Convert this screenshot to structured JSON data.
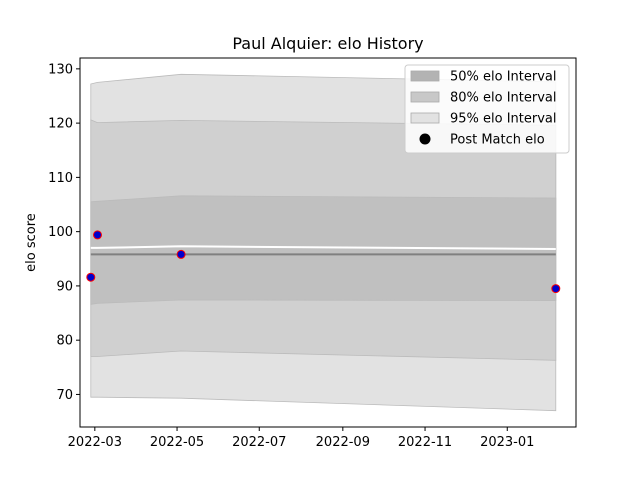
{
  "chart_data": {
    "type": "area",
    "title": "Paul Alquier: elo History",
    "xlabel": "",
    "ylabel": "elo score",
    "xlim": [
      "2022-02-18",
      "2023-02-21"
    ],
    "ylim": [
      64,
      132
    ],
    "x_ticks": [
      "2022-03",
      "2022-05",
      "2022-07",
      "2022-09",
      "2022-11",
      "2023-01"
    ],
    "y_ticks": [
      70,
      80,
      90,
      100,
      110,
      120,
      130
    ],
    "grid": false,
    "legend_position": "top-right",
    "legend": [
      {
        "label": "50% elo Interval",
        "kind": "band",
        "color": "#b3b3b3"
      },
      {
        "label": "80% elo Interval",
        "kind": "band",
        "color": "#c8c8c8"
      },
      {
        "label": "95% elo Interval",
        "kind": "band",
        "color": "#e2e2e2"
      },
      {
        "label": "Post Match elo",
        "kind": "marker",
        "color": "#000000"
      }
    ],
    "dates": [
      "2022-02-26",
      "2022-03-03",
      "2022-05-04",
      "2023-02-06"
    ],
    "bands": [
      {
        "name": "95% elo Interval",
        "color": "#e2e2e2",
        "upper": [
          127.2,
          127.5,
          129.0,
          127.6
        ],
        "lower": [
          69.5,
          69.5,
          69.3,
          67.0
        ]
      },
      {
        "name": "80% elo Interval",
        "color": "#d0d0d0",
        "upper": [
          120.6,
          120.1,
          120.5,
          119.6
        ],
        "lower": [
          77.0,
          77.0,
          78.0,
          76.3
        ]
      },
      {
        "name": "50% elo Interval",
        "color": "#c0c0c0",
        "upper": [
          105.5,
          105.6,
          106.6,
          106.2
        ],
        "lower": [
          86.6,
          86.8,
          87.4,
          87.3
        ]
      }
    ],
    "series": [
      {
        "kind": "line",
        "color": "#ffffff",
        "values": [
          97.0,
          97.0,
          97.3,
          96.8
        ]
      },
      {
        "kind": "line",
        "color": "#808080",
        "values": [
          95.8,
          95.8,
          95.8,
          95.8
        ]
      }
    ],
    "points": [
      {
        "date": "2022-02-26",
        "value": 91.6
      },
      {
        "date": "2022-03-03",
        "value": 99.4
      },
      {
        "date": "2022-05-04",
        "value": 95.8
      },
      {
        "date": "2023-02-06",
        "value": 89.5
      }
    ],
    "point_fill": "#0000cc",
    "point_edge": "#ff0000"
  }
}
